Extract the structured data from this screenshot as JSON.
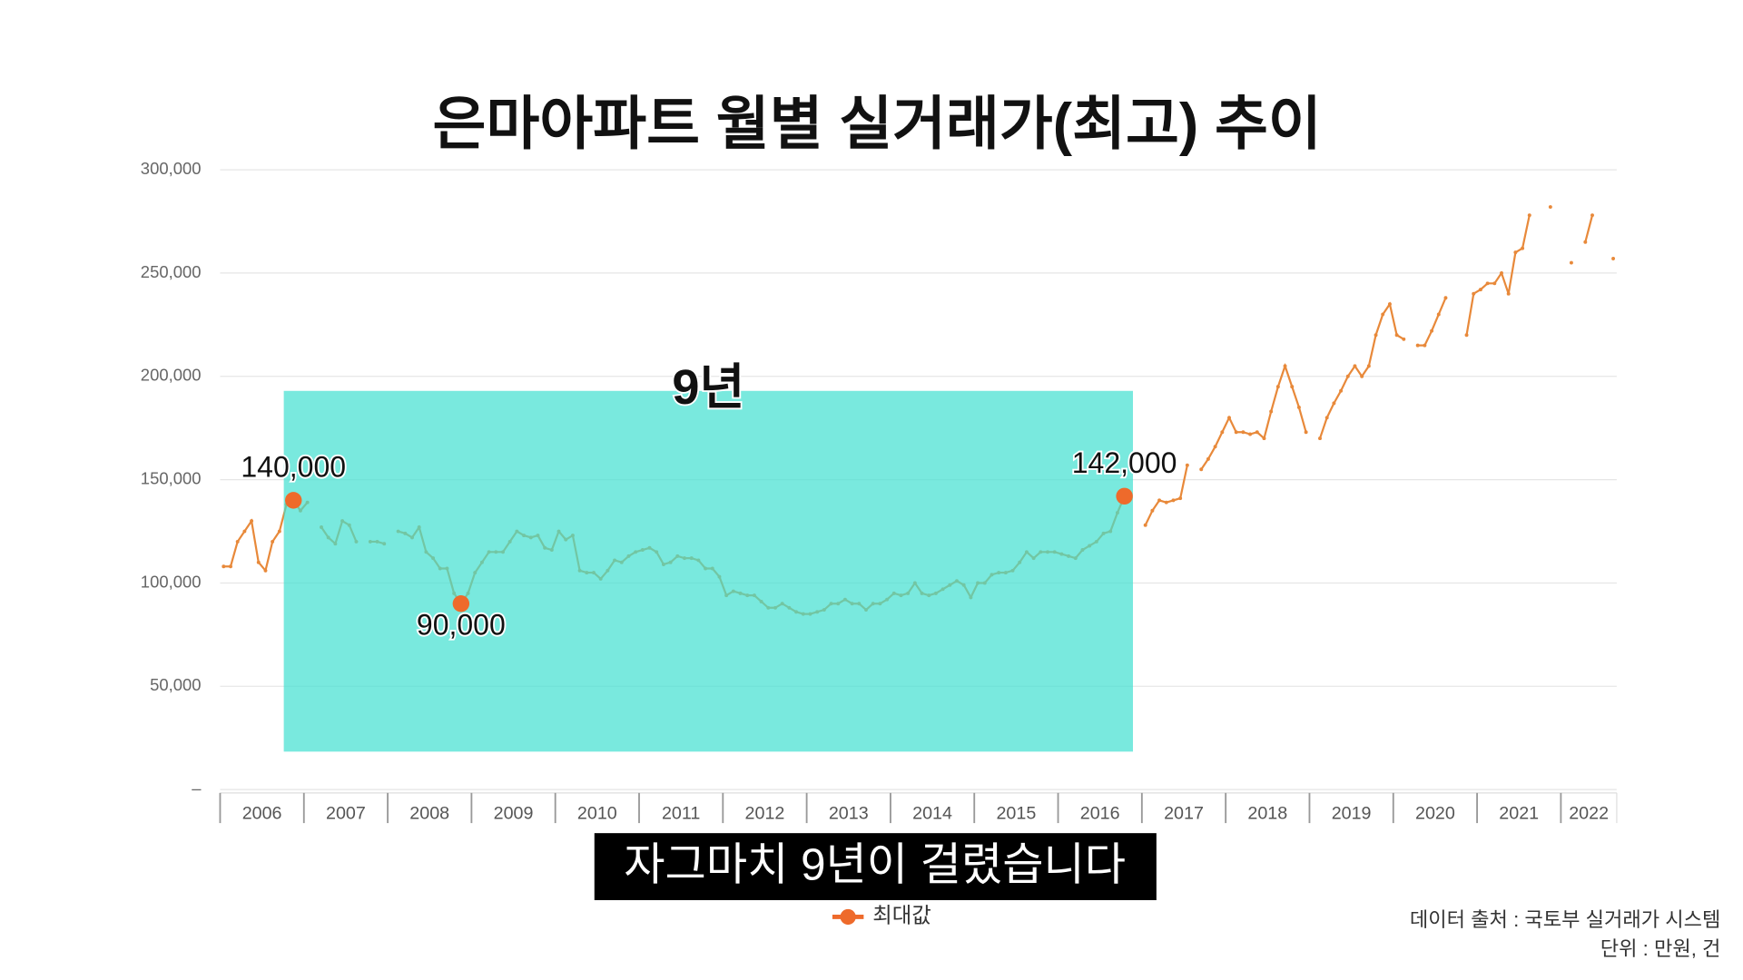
{
  "chart_data": {
    "type": "line",
    "title": "은마아파트 월별 실거래가(최고) 추이",
    "caption": "자그마치 9년이 걸렸습니다",
    "highlight_label": "9년",
    "source": "데이터 출처 : 국토부 실거래가 시스템",
    "unit_note": "단위 : 만원, 건",
    "legend": "bottom",
    "grid": true,
    "ylim": [
      0,
      300000
    ],
    "yticks": [
      {
        "value": 0,
        "label": "–"
      },
      {
        "value": 50000,
        "label": "50,000"
      },
      {
        "value": 100000,
        "label": "100,000"
      },
      {
        "value": 150000,
        "label": "150,000"
      },
      {
        "value": 200000,
        "label": "200,000"
      },
      {
        "value": 250000,
        "label": "250,000"
      },
      {
        "value": 300000,
        "label": "300,000"
      }
    ],
    "categories": [
      null,
      null,
      null,
      null,
      null,
      "2006",
      null,
      null,
      null,
      null,
      null,
      null,
      null,
      null,
      null,
      null,
      null,
      "2007",
      null,
      null,
      null,
      null,
      null,
      null,
      null,
      null,
      null,
      null,
      null,
      "2008",
      null,
      null,
      null,
      null,
      null,
      null,
      null,
      null,
      null,
      null,
      null,
      "2009",
      null,
      null,
      null,
      null,
      null,
      null,
      null,
      null,
      null,
      null,
      null,
      "2010",
      null,
      null,
      null,
      null,
      null,
      null,
      null,
      null,
      null,
      null,
      null,
      "2011",
      null,
      null,
      null,
      null,
      null,
      null,
      null,
      null,
      null,
      null,
      null,
      "2012",
      null,
      null,
      null,
      null,
      null,
      null,
      null,
      null,
      null,
      null,
      null,
      "2013",
      null,
      null,
      null,
      null,
      null,
      null,
      null,
      null,
      null,
      null,
      null,
      "2014",
      null,
      null,
      null,
      null,
      null,
      null,
      null,
      null,
      null,
      null,
      null,
      "2015",
      null,
      null,
      null,
      null,
      null,
      null,
      null,
      null,
      null,
      null,
      null,
      "2016",
      null,
      null,
      null,
      null,
      null,
      null,
      null,
      null,
      null,
      null,
      null,
      "2017",
      null,
      null,
      null,
      null,
      null,
      null,
      null,
      null,
      null,
      null,
      null,
      "2018",
      null,
      null,
      null,
      null,
      null,
      null,
      null,
      null,
      null,
      null,
      null,
      "2019",
      null,
      null,
      null,
      null,
      null,
      null,
      null,
      null,
      null,
      null,
      null,
      "2020",
      null,
      null,
      null,
      null,
      null,
      null,
      null,
      null,
      null,
      null,
      null,
      "2021",
      null,
      null,
      null,
      null,
      null,
      null,
      null,
      null,
      null,
      "2022",
      null,
      null,
      null,
      null
    ],
    "series": [
      {
        "name": "최대값",
        "color": "#e8893a",
        "values": [
          108000,
          108000,
          120000,
          125000,
          130000,
          110000,
          106000,
          120000,
          125000,
          138000,
          140000,
          135000,
          139000,
          null,
          127000,
          122000,
          119000,
          130000,
          128000,
          120000,
          null,
          120000,
          120000,
          119000,
          null,
          125000,
          124000,
          122000,
          127000,
          115000,
          112000,
          107000,
          107000,
          95000,
          90000,
          95000,
          105000,
          110000,
          115000,
          115000,
          115000,
          120000,
          125000,
          123000,
          122000,
          123000,
          117000,
          116000,
          125000,
          121000,
          123000,
          106000,
          105000,
          105000,
          102000,
          106000,
          111000,
          110000,
          113000,
          115000,
          116000,
          117000,
          115000,
          109000,
          110000,
          113000,
          112000,
          112000,
          111000,
          107000,
          107000,
          103000,
          94000,
          96000,
          95000,
          94000,
          94000,
          91000,
          88000,
          88000,
          90000,
          88000,
          86000,
          85000,
          85000,
          86000,
          87000,
          90000,
          90000,
          92000,
          90000,
          90000,
          87000,
          90000,
          90000,
          92000,
          95000,
          94000,
          95000,
          100000,
          95000,
          94000,
          95000,
          97000,
          99000,
          101000,
          99000,
          93000,
          100000,
          100000,
          104000,
          105000,
          105000,
          106000,
          110000,
          115000,
          112000,
          115000,
          115000,
          115000,
          114000,
          113000,
          112000,
          116000,
          118000,
          120000,
          124000,
          125000,
          134000,
          142000,
          null,
          null,
          128000,
          135000,
          140000,
          139000,
          140000,
          141000,
          157000,
          null,
          155000,
          160000,
          166000,
          173000,
          180000,
          173000,
          173000,
          172000,
          173000,
          170000,
          183000,
          195000,
          205000,
          195000,
          185000,
          173000,
          null,
          170000,
          180000,
          187000,
          193000,
          200000,
          205000,
          200000,
          205000,
          220000,
          230000,
          235000,
          220000,
          218000,
          null,
          215000,
          215000,
          222000,
          230000,
          238000,
          null,
          null,
          220000,
          240000,
          242000,
          245000,
          245000,
          250000,
          240000,
          260000,
          262000,
          278000,
          null,
          null,
          282000,
          null,
          null,
          255000,
          null,
          265000,
          278000,
          null,
          null,
          257000
        ],
        "value_labels": [
          null,
          null,
          null,
          null,
          null,
          null,
          null,
          null,
          null,
          null,
          "140,000",
          null,
          null,
          null,
          null,
          null,
          null,
          null,
          null,
          null,
          null,
          null,
          null,
          null,
          null,
          null,
          null,
          null,
          null,
          null,
          null,
          null,
          null,
          null,
          "90,000",
          null,
          null,
          null,
          null,
          null,
          null,
          null,
          null,
          null,
          null,
          null,
          null,
          null,
          null,
          null,
          null,
          null,
          null,
          null,
          null,
          null,
          null,
          null,
          null,
          null,
          null,
          null,
          null,
          null,
          null,
          null,
          null,
          null,
          null,
          null,
          null,
          null,
          null,
          null,
          null,
          null,
          null,
          null,
          null,
          null,
          null,
          null,
          null,
          null,
          null,
          null,
          null,
          null,
          null,
          null,
          null,
          null,
          null,
          null,
          null,
          null,
          null,
          null,
          null,
          null,
          null,
          null,
          null,
          null,
          null,
          null,
          null,
          null,
          null,
          null,
          null,
          null,
          null,
          null,
          null,
          null,
          null,
          null,
          null,
          null,
          null,
          null,
          null,
          null,
          null,
          null,
          null,
          null,
          null,
          "142,000",
          null,
          null,
          null,
          null,
          null,
          null,
          null,
          null,
          null,
          null,
          null,
          null,
          null,
          null,
          null,
          null,
          null,
          null,
          null,
          null,
          null,
          null,
          null,
          null,
          null,
          null,
          null,
          null,
          null,
          null,
          null,
          null,
          null,
          null,
          null,
          null,
          null,
          null,
          null,
          null,
          null,
          null,
          null,
          null,
          null,
          null,
          null,
          null,
          null,
          null,
          null,
          null,
          null,
          null,
          null,
          null,
          null,
          null,
          null,
          null,
          null,
          null,
          null,
          null,
          null,
          null,
          null,
          null,
          null,
          null
        ]
      }
    ]
  }
}
